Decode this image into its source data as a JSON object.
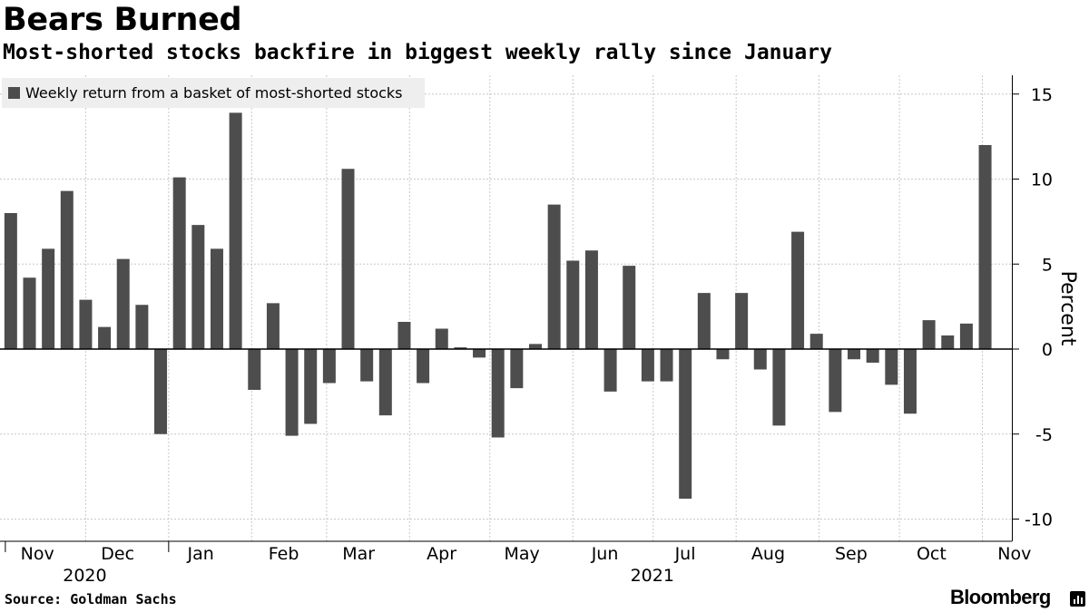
{
  "header": {
    "title": "Bears Burned",
    "subtitle": "Most-shorted stocks backfire in biggest weekly rally since January"
  },
  "footer": {
    "source": "Source: Goldman Sachs",
    "brand": "Bloomberg"
  },
  "chart_data": {
    "type": "bar",
    "legend": "Weekly return from a basket of most-shorted stocks",
    "legend_position": "top-left",
    "ylabel": "Percent",
    "ylim": [
      -11,
      16
    ],
    "yticks": [
      15,
      10,
      5,
      0,
      -5,
      -10
    ],
    "ytick_labels": [
      "15",
      "10",
      "5",
      "0",
      "-5",
      "-10"
    ],
    "grid": true,
    "bar_color": "#4d4d4d",
    "x_start": "2020-10-30",
    "x_end": "2021-11-12",
    "month_labels": [
      {
        "label": "Nov",
        "date": "2020-11-15"
      },
      {
        "label": "Dec",
        "date": "2020-12-15"
      },
      {
        "label": "Jan",
        "date": "2021-01-15"
      },
      {
        "label": "Feb",
        "date": "2021-02-15"
      },
      {
        "label": "Mar",
        "date": "2021-03-15"
      },
      {
        "label": "Apr",
        "date": "2021-04-15"
      },
      {
        "label": "May",
        "date": "2021-05-15"
      },
      {
        "label": "Jun",
        "date": "2021-06-15"
      },
      {
        "label": "Jul",
        "date": "2021-07-15"
      },
      {
        "label": "Aug",
        "date": "2021-08-15"
      },
      {
        "label": "Sep",
        "date": "2021-09-15"
      },
      {
        "label": "Oct",
        "date": "2021-10-15"
      },
      {
        "label": "Nov",
        "date": "2021-11-15"
      }
    ],
    "year_labels": [
      {
        "label": "2020",
        "date": "2020-11-30"
      },
      {
        "label": "2021",
        "date": "2021-06-30"
      }
    ],
    "month_grid_dates": [
      "2020-12-01",
      "2021-01-01",
      "2021-02-01",
      "2021-03-01",
      "2021-04-01",
      "2021-05-01",
      "2021-06-01",
      "2021-07-01",
      "2021-08-01",
      "2021-09-01",
      "2021-10-01",
      "2021-11-01"
    ],
    "year_boundary_dates": [
      "2020-11-01",
      "2021-01-01"
    ],
    "series": [
      {
        "dates": [
          "2020-11-02",
          "2020-11-09",
          "2020-11-16",
          "2020-11-23",
          "2020-11-30",
          "2020-12-07",
          "2020-12-14",
          "2020-12-21",
          "2020-12-28",
          "2021-01-04",
          "2021-01-11",
          "2021-01-18",
          "2021-01-25",
          "2021-02-01",
          "2021-02-08",
          "2021-02-15",
          "2021-02-22",
          "2021-03-01",
          "2021-03-08",
          "2021-03-15",
          "2021-03-22",
          "2021-03-29",
          "2021-04-05",
          "2021-04-12",
          "2021-04-19",
          "2021-04-26",
          "2021-05-03",
          "2021-05-10",
          "2021-05-17",
          "2021-05-24",
          "2021-05-31",
          "2021-06-07",
          "2021-06-14",
          "2021-06-21",
          "2021-06-28",
          "2021-07-05",
          "2021-07-12",
          "2021-07-19",
          "2021-07-26",
          "2021-08-02",
          "2021-08-09",
          "2021-08-16",
          "2021-08-23",
          "2021-08-30",
          "2021-09-06",
          "2021-09-13",
          "2021-09-20",
          "2021-09-27",
          "2021-10-04",
          "2021-10-11",
          "2021-10-18",
          "2021-10-25",
          "2021-11-01",
          "2021-11-08"
        ],
        "values": [
          8.0,
          4.2,
          5.9,
          9.3,
          2.9,
          1.3,
          5.3,
          2.6,
          -5.0,
          10.1,
          7.3,
          5.9,
          13.9,
          -2.4,
          2.7,
          -5.1,
          -4.4,
          -2.0,
          10.6,
          -1.9,
          -3.9,
          1.6,
          -2.0,
          1.2,
          0.1,
          -0.5,
          -5.2,
          -2.3,
          0.3,
          8.5,
          5.2,
          5.8,
          -2.5,
          4.9,
          -1.9,
          -1.9,
          -8.8,
          3.3,
          -0.6,
          3.3,
          -1.2,
          -4.5,
          6.9,
          0.9,
          -3.7,
          -0.6,
          -0.8,
          -2.1,
          -3.8,
          1.7,
          0.8,
          1.5,
          12.0,
          null
        ]
      }
    ]
  }
}
